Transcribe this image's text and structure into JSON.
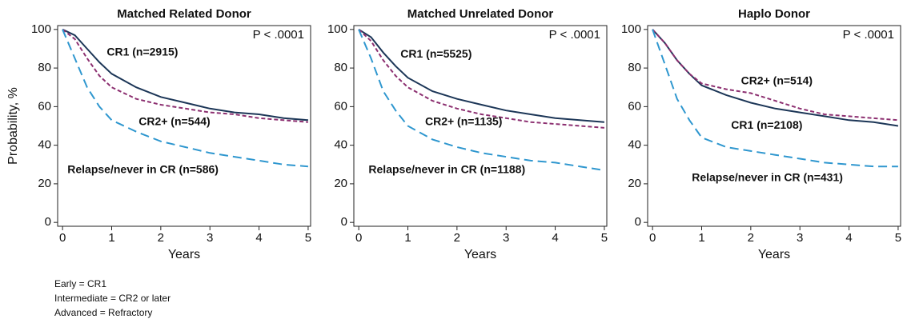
{
  "chart_data": [
    {
      "type": "line",
      "title": "Matched Related Donor",
      "xlabel": "Years",
      "ylabel": "Probability, %",
      "annotation": "P < .0001",
      "x": [
        0,
        0.25,
        0.5,
        0.75,
        1,
        1.5,
        2,
        2.5,
        3,
        3.5,
        4,
        4.5,
        5
      ],
      "series": [
        {
          "name": "CR1 (n=2915)",
          "color": "#1c3657",
          "linestyle": "solid",
          "values": [
            100,
            97,
            90,
            83,
            77,
            70,
            65,
            62,
            59,
            57,
            56,
            54,
            53
          ]
        },
        {
          "name": "CR2+ (n=544)",
          "color": "#8c2f70",
          "linestyle": "short-dash",
          "values": [
            100,
            95,
            85,
            76,
            70,
            64,
            61,
            59,
            57,
            56,
            54,
            53,
            52
          ]
        },
        {
          "name": "Relapse/never in CR (n=586)",
          "color": "#2f97cf",
          "linestyle": "long-dash",
          "values": [
            100,
            85,
            70,
            60,
            53,
            47,
            42,
            39,
            36,
            34,
            32,
            30,
            29
          ]
        }
      ],
      "xlim": [
        -0.1,
        5.05
      ],
      "xticks": [
        0,
        1,
        2,
        3,
        4,
        5
      ],
      "ylim": [
        -2,
        102
      ],
      "yticks": [
        0,
        20,
        40,
        60,
        80,
        100
      ]
    },
    {
      "type": "line",
      "title": "Matched Unrelated Donor",
      "xlabel": "Years",
      "annotation": "P < .0001",
      "x": [
        0,
        0.25,
        0.5,
        0.75,
        1,
        1.5,
        2,
        2.5,
        3,
        3.5,
        4,
        4.5,
        5
      ],
      "series": [
        {
          "name": "CR1 (n=5525)",
          "color": "#1c3657",
          "linestyle": "solid",
          "values": [
            100,
            96,
            88,
            81,
            75,
            68,
            64,
            61,
            58,
            56,
            54,
            53,
            52
          ]
        },
        {
          "name": "CR2+ (n=1135)",
          "color": "#8c2f70",
          "linestyle": "short-dash",
          "values": [
            100,
            94,
            84,
            76,
            70,
            63,
            59,
            56,
            54,
            52,
            51,
            50,
            49
          ]
        },
        {
          "name": "Relapse/never in CR (n=1188)",
          "color": "#2f97cf",
          "linestyle": "long-dash",
          "values": [
            100,
            85,
            68,
            58,
            50,
            43,
            39,
            36,
            34,
            32,
            31,
            29,
            27
          ]
        }
      ],
      "xlim": [
        -0.1,
        5.05
      ],
      "xticks": [
        0,
        1,
        2,
        3,
        4,
        5
      ],
      "ylim": [
        -2,
        102
      ],
      "yticks": [
        0,
        20,
        40,
        60,
        80,
        100
      ]
    },
    {
      "type": "line",
      "title": "Haplo Donor",
      "xlabel": "Years",
      "annotation": "P < .0001",
      "x": [
        0,
        0.25,
        0.5,
        0.75,
        1,
        1.5,
        2,
        2.5,
        3,
        3.5,
        4,
        4.5,
        5
      ],
      "series": [
        {
          "name": "CR1 (n=2108)",
          "color": "#1c3657",
          "linestyle": "solid",
          "values": [
            100,
            93,
            84,
            77,
            71,
            66,
            62,
            59,
            57,
            55,
            53,
            52,
            50
          ]
        },
        {
          "name": "CR2+ (n=514)",
          "color": "#8c2f70",
          "linestyle": "short-dash",
          "values": [
            100,
            93,
            84,
            77,
            72,
            69,
            67,
            63,
            59,
            56,
            55,
            54,
            53
          ]
        },
        {
          "name": "Relapse/never in CR (n=431)",
          "color": "#2f97cf",
          "linestyle": "long-dash",
          "values": [
            100,
            82,
            64,
            53,
            44,
            39,
            37,
            35,
            33,
            31,
            30,
            29,
            29
          ]
        }
      ],
      "xlim": [
        -0.1,
        5.05
      ],
      "xticks": [
        0,
        1,
        2,
        3,
        4,
        5
      ],
      "ylim": [
        -2,
        102
      ],
      "yticks": [
        0,
        20,
        40,
        60,
        80,
        100
      ]
    }
  ],
  "footnotes": [
    "Early = CR1",
    "Intermediate = CR2 or later",
    "Advanced = Refractory"
  ]
}
